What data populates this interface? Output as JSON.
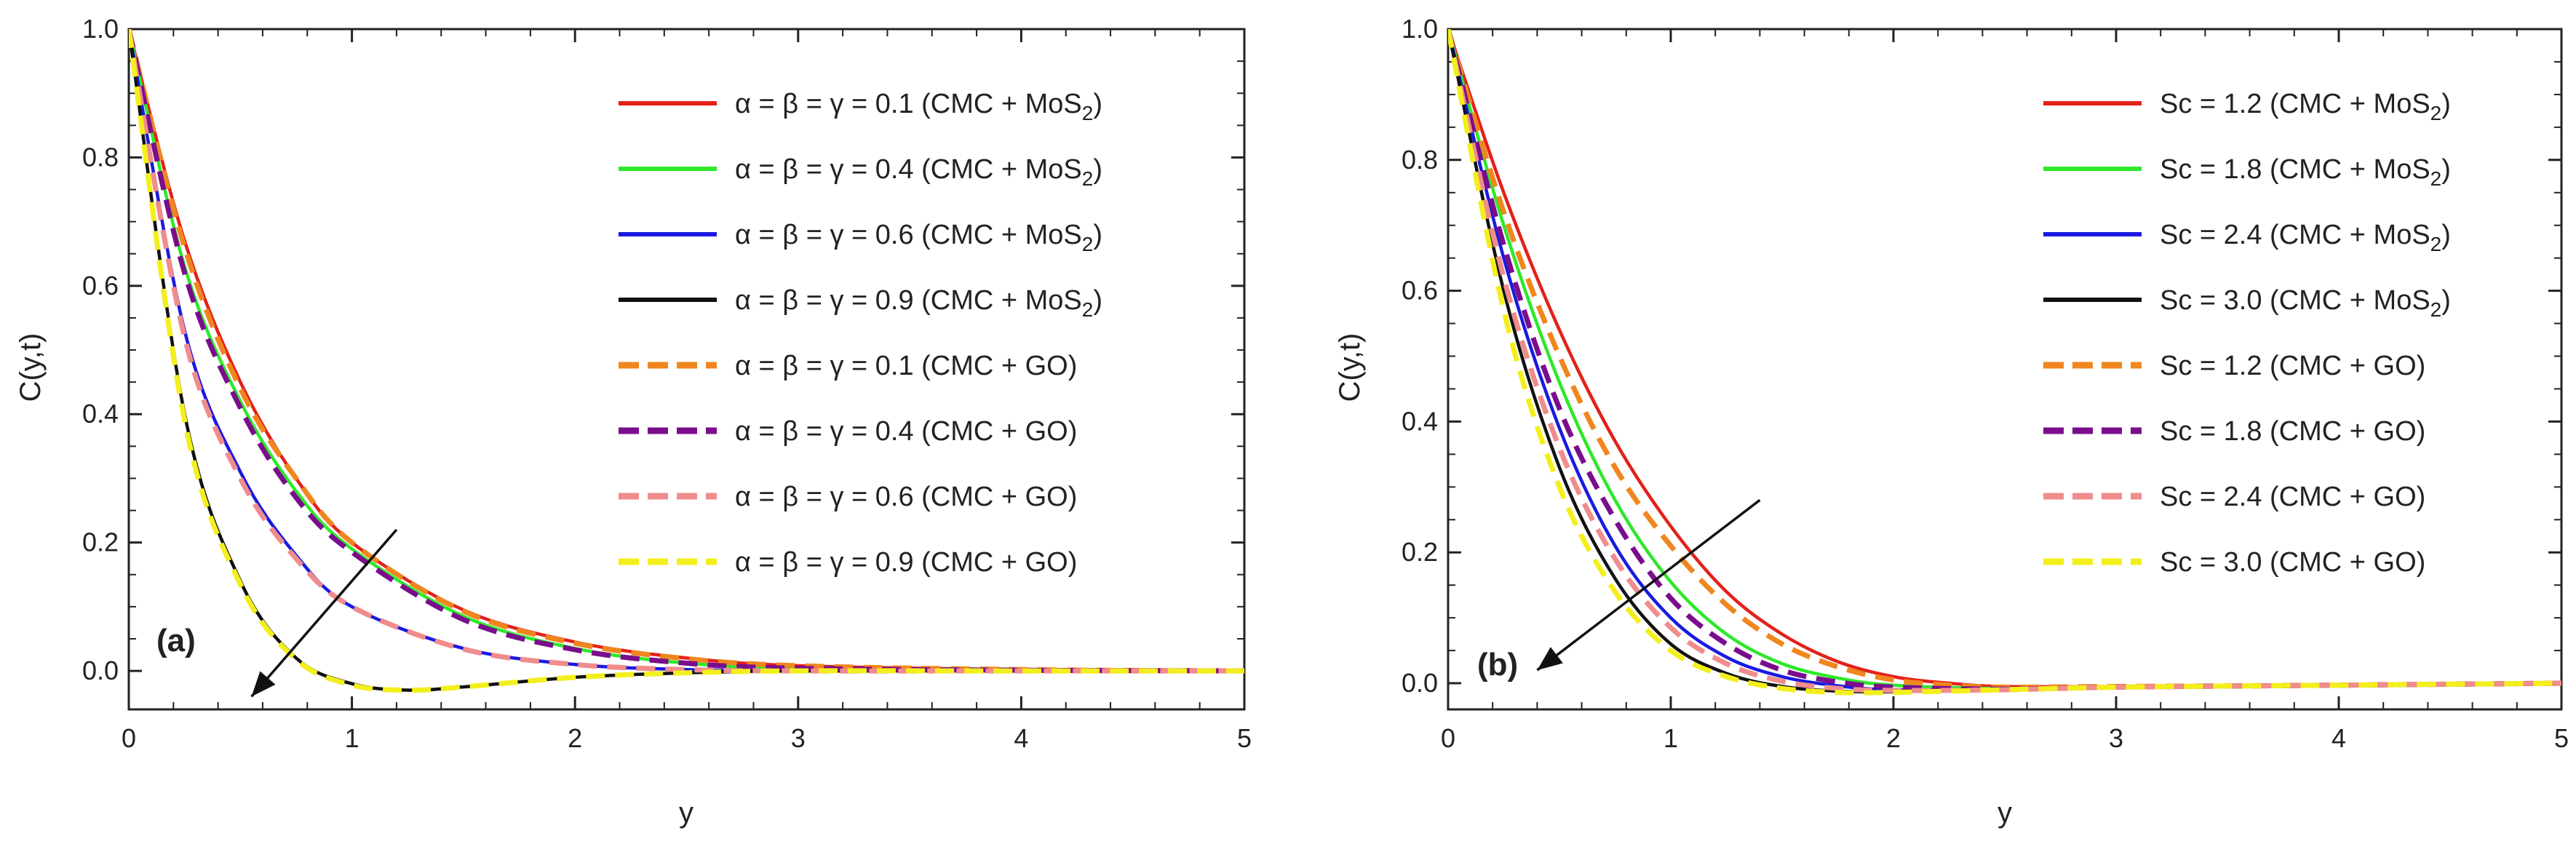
{
  "chart_data": [
    {
      "type": "line",
      "panel_label": "(a)",
      "xlabel": "y",
      "ylabel": "C(y,t)",
      "xlim": [
        0,
        5
      ],
      "ylim": [
        -0.06,
        1.0
      ],
      "xticks": [
        "0",
        "1",
        "2",
        "3",
        "4",
        "5"
      ],
      "yticks": [
        "0.0",
        "0.2",
        "0.4",
        "0.6",
        "0.8",
        "1.0"
      ],
      "legend_position": "top-right",
      "arrow": {
        "from": [
          1.2,
          0.22
        ],
        "to": [
          0.55,
          -0.04
        ]
      },
      "series": [
        {
          "name": "α = β = γ = 0.1  (CMC + MoS",
          "sub": "2",
          "close": ")",
          "color": "#e32119",
          "dash": false,
          "x": [
            0,
            0.25,
            0.5,
            0.75,
            1.0,
            1.5,
            2.0,
            2.5,
            3.0,
            4.0,
            5.0
          ],
          "values": [
            1.0,
            0.67,
            0.45,
            0.3,
            0.2,
            0.095,
            0.045,
            0.02,
            0.008,
            0.002,
            0.0
          ]
        },
        {
          "name": "α = β = γ = 0.4  (CMC + MoS",
          "sub": "2",
          "close": ")",
          "color": "#2ee82a",
          "dash": false,
          "x": [
            0,
            0.25,
            0.5,
            0.75,
            1.0,
            1.5,
            2.0,
            2.5,
            3.0,
            4.0,
            5.0
          ],
          "values": [
            1.0,
            0.63,
            0.42,
            0.28,
            0.19,
            0.085,
            0.035,
            0.012,
            0.004,
            0.001,
            0.0
          ]
        },
        {
          "name": "α = β = γ = 0.6  (CMC + MoS",
          "sub": "2",
          "close": ")",
          "color": "#1a1ae0",
          "dash": false,
          "x": [
            0,
            0.25,
            0.5,
            0.75,
            1.0,
            1.5,
            2.0,
            2.5,
            3.0,
            4.0,
            5.0
          ],
          "values": [
            1.0,
            0.53,
            0.31,
            0.18,
            0.1,
            0.035,
            0.01,
            0.002,
            0.0,
            0.0,
            0.0
          ]
        },
        {
          "name": "α = β = γ = 0.9  (CMC + MoS",
          "sub": "2",
          "close": ")",
          "color": "#111111",
          "dash": false,
          "x": [
            0,
            0.25,
            0.5,
            0.75,
            1.0,
            1.25,
            1.5,
            2.0,
            2.5,
            3.0,
            4.0,
            5.0
          ],
          "values": [
            1.0,
            0.4,
            0.14,
            0.02,
            -0.02,
            -0.03,
            -0.025,
            -0.01,
            -0.003,
            0.0,
            0.0,
            0.0
          ]
        },
        {
          "name": "α = β = γ = 0.1  (CMC + GO)",
          "sub": "",
          "close": "",
          "color": "#f0861e",
          "dash": true,
          "x": [
            0,
            0.25,
            0.5,
            0.75,
            1.0,
            1.5,
            2.0,
            2.5,
            3.0,
            4.0,
            5.0
          ],
          "values": [
            1.0,
            0.66,
            0.44,
            0.3,
            0.2,
            0.093,
            0.043,
            0.019,
            0.008,
            0.002,
            0.0
          ]
        },
        {
          "name": "α = β = γ = 0.4  (CMC + GO)",
          "sub": "",
          "close": "",
          "color": "#7a0d8c",
          "dash": true,
          "x": [
            0,
            0.25,
            0.5,
            0.75,
            1.0,
            1.5,
            2.0,
            2.5,
            3.0,
            4.0,
            5.0
          ],
          "values": [
            1.0,
            0.62,
            0.41,
            0.27,
            0.185,
            0.08,
            0.033,
            0.012,
            0.004,
            0.001,
            0.0
          ]
        },
        {
          "name": "α = β = γ = 0.6  (CMC + GO)",
          "sub": "",
          "close": "",
          "color": "#f08c8c",
          "dash": true,
          "x": [
            0,
            0.25,
            0.5,
            0.75,
            1.0,
            1.5,
            2.0,
            2.5,
            3.0,
            4.0,
            5.0
          ],
          "values": [
            1.0,
            0.52,
            0.3,
            0.175,
            0.1,
            0.034,
            0.01,
            0.002,
            0.0,
            0.0,
            0.0
          ]
        },
        {
          "name": "α = β = γ = 0.9  (CMC + GO)",
          "sub": "",
          "close": "",
          "color": "#f3ef1c",
          "dash": true,
          "x": [
            0,
            0.25,
            0.5,
            0.75,
            1.0,
            1.25,
            1.5,
            2.0,
            2.5,
            3.0,
            4.0,
            5.0
          ],
          "values": [
            1.0,
            0.39,
            0.135,
            0.018,
            -0.022,
            -0.03,
            -0.025,
            -0.01,
            -0.003,
            0.0,
            0.0,
            0.0
          ]
        }
      ]
    },
    {
      "type": "line",
      "panel_label": "(b)",
      "xlabel": "y",
      "ylabel": "C(y,t)",
      "xlim": [
        0,
        5
      ],
      "ylim": [
        -0.04,
        1.0
      ],
      "xticks": [
        "0",
        "1",
        "2",
        "3",
        "4",
        "5"
      ],
      "yticks": [
        "0.0",
        "0.2",
        "0.4",
        "0.6",
        "0.8",
        "1.0"
      ],
      "legend_position": "top-right",
      "arrow": {
        "from": [
          1.4,
          0.28
        ],
        "to": [
          0.4,
          0.02
        ]
      },
      "series": [
        {
          "name": "Sc = 1.2  (CMC + MoS",
          "sub": "2",
          "close": ")",
          "color": "#e32119",
          "dash": false,
          "x": [
            0,
            0.25,
            0.5,
            0.75,
            1.0,
            1.25,
            1.5,
            1.75,
            2.0,
            2.25,
            2.5,
            3.0,
            4.0,
            5.0
          ],
          "values": [
            1.0,
            0.75,
            0.54,
            0.37,
            0.24,
            0.14,
            0.075,
            0.033,
            0.01,
            0.0,
            -0.005,
            -0.005,
            -0.003,
            0.0
          ]
        },
        {
          "name": "Sc = 1.8  (CMC + MoS",
          "sub": "2",
          "close": ")",
          "color": "#2ee82a",
          "dash": false,
          "x": [
            0,
            0.25,
            0.5,
            0.75,
            1.0,
            1.25,
            1.5,
            1.75,
            2.0,
            2.5,
            3.0,
            4.0,
            5.0
          ],
          "values": [
            1.0,
            0.7,
            0.46,
            0.28,
            0.155,
            0.075,
            0.03,
            0.008,
            -0.003,
            -0.008,
            -0.006,
            -0.003,
            0.0
          ]
        },
        {
          "name": "Sc = 2.4  (CMC + MoS",
          "sub": "2",
          "close": ")",
          "color": "#1a1ae0",
          "dash": false,
          "x": [
            0,
            0.25,
            0.5,
            0.75,
            1.0,
            1.25,
            1.5,
            1.75,
            2.0,
            2.5,
            3.0,
            4.0,
            5.0
          ],
          "values": [
            1.0,
            0.65,
            0.39,
            0.21,
            0.1,
            0.04,
            0.01,
            -0.004,
            -0.01,
            -0.01,
            -0.006,
            -0.003,
            0.0
          ]
        },
        {
          "name": "Sc = 3.0  (CMC + MoS",
          "sub": "2",
          "close": ")",
          "color": "#111111",
          "dash": false,
          "x": [
            0,
            0.25,
            0.5,
            0.75,
            1.0,
            1.25,
            1.5,
            1.75,
            2.0,
            2.5,
            3.0,
            4.0,
            5.0
          ],
          "values": [
            1.0,
            0.6,
            0.33,
            0.16,
            0.06,
            0.015,
            -0.005,
            -0.012,
            -0.013,
            -0.01,
            -0.006,
            -0.003,
            0.0
          ]
        },
        {
          "name": "Sc = 1.2  (CMC + GO)",
          "sub": "",
          "close": "",
          "color": "#f0861e",
          "dash": true,
          "x": [
            0,
            0.25,
            0.5,
            0.75,
            1.0,
            1.25,
            1.5,
            1.75,
            2.0,
            2.25,
            2.5,
            3.0,
            4.0,
            5.0
          ],
          "values": [
            1.0,
            0.72,
            0.5,
            0.33,
            0.21,
            0.12,
            0.06,
            0.025,
            0.005,
            -0.003,
            -0.006,
            -0.005,
            -0.003,
            0.0
          ]
        },
        {
          "name": "Sc = 1.8  (CMC + GO)",
          "sub": "",
          "close": "",
          "color": "#7a0d8c",
          "dash": true,
          "x": [
            0,
            0.25,
            0.5,
            0.75,
            1.0,
            1.25,
            1.5,
            1.75,
            2.0,
            2.5,
            3.0,
            4.0,
            5.0
          ],
          "values": [
            1.0,
            0.67,
            0.42,
            0.25,
            0.13,
            0.06,
            0.02,
            0.002,
            -0.006,
            -0.009,
            -0.006,
            -0.003,
            0.0
          ]
        },
        {
          "name": "Sc = 2.4  (CMC + GO)",
          "sub": "",
          "close": "",
          "color": "#f08c8c",
          "dash": true,
          "x": [
            0,
            0.25,
            0.5,
            0.75,
            1.0,
            1.25,
            1.5,
            1.75,
            2.0,
            2.5,
            3.0,
            4.0,
            5.0
          ],
          "values": [
            1.0,
            0.62,
            0.36,
            0.19,
            0.085,
            0.03,
            0.003,
            -0.008,
            -0.011,
            -0.01,
            -0.006,
            -0.003,
            0.0
          ]
        },
        {
          "name": "Sc = 3.0  (CMC + GO)",
          "sub": "",
          "close": "",
          "color": "#f3ef1c",
          "dash": true,
          "x": [
            0,
            0.25,
            0.5,
            0.75,
            1.0,
            1.25,
            1.5,
            1.75,
            2.0,
            2.5,
            3.0,
            4.0,
            5.0
          ],
          "values": [
            1.0,
            0.57,
            0.3,
            0.14,
            0.05,
            0.01,
            -0.008,
            -0.014,
            -0.014,
            -0.01,
            -0.006,
            -0.003,
            0.0
          ]
        }
      ]
    }
  ]
}
